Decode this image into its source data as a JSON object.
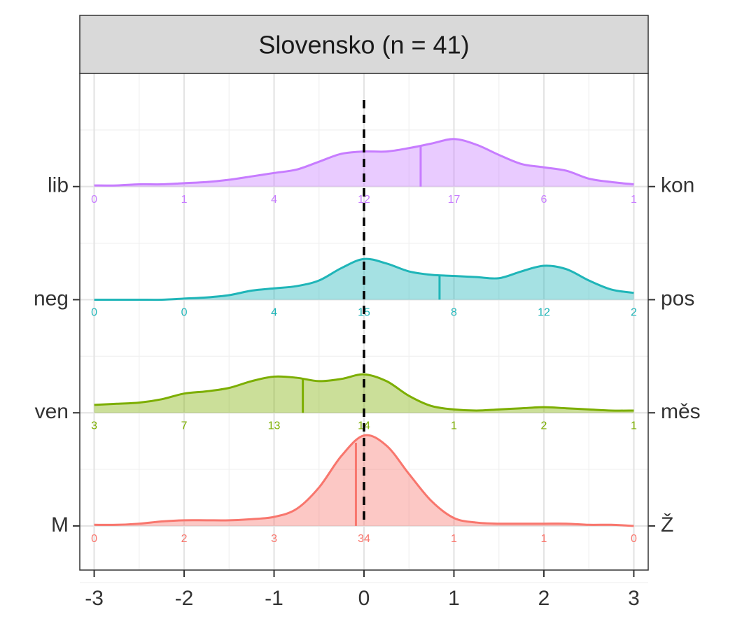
{
  "chart_data": {
    "type": "ridgeline",
    "title": "Slovensko (n = 41)",
    "x": [
      -3,
      -2.75,
      -2.5,
      -2.25,
      -2,
      -1.75,
      -1.5,
      -1.25,
      -1,
      -0.75,
      -0.5,
      -0.25,
      0,
      0.25,
      0.5,
      0.75,
      1,
      1.25,
      1.5,
      1.75,
      2,
      2.25,
      2.5,
      2.75,
      3
    ],
    "xlim": [
      -3.16,
      3.16
    ],
    "xticks": [
      -3,
      -2,
      -1,
      0,
      1,
      2,
      3
    ],
    "ylim": [
      0.61,
      5.0
    ],
    "yticks": [
      {
        "value": 1,
        "label": "M"
      },
      {
        "value": 2,
        "label": "ven"
      },
      {
        "value": 3,
        "label": "neg"
      },
      {
        "value": 4,
        "label": "lib"
      }
    ],
    "y2ticks": [
      {
        "value": 1,
        "label": "Ž"
      },
      {
        "value": 2,
        "label": "měs"
      },
      {
        "value": 3,
        "label": "pos"
      },
      {
        "value": 4,
        "label": "kon"
      }
    ],
    "vline": 0,
    "grid": true,
    "series": [
      {
        "color": "#f8766d",
        "mean": -0.09,
        "counts": [
          0,
          2,
          3,
          34,
          1,
          1,
          0
        ],
        "values": [
          0.01,
          0.01,
          0.02,
          0.04,
          0.05,
          0.05,
          0.05,
          0.06,
          0.08,
          0.15,
          0.34,
          0.62,
          0.8,
          0.71,
          0.46,
          0.22,
          0.07,
          0.03,
          0.02,
          0.02,
          0.02,
          0.02,
          0.01,
          0.01,
          0
        ]
      },
      {
        "color": "#7cae00",
        "mean": -0.68,
        "counts": [
          3,
          7,
          13,
          14,
          1,
          2,
          1
        ],
        "values": [
          0.07,
          0.08,
          0.09,
          0.12,
          0.17,
          0.19,
          0.22,
          0.28,
          0.32,
          0.31,
          0.28,
          0.3,
          0.34,
          0.28,
          0.15,
          0.06,
          0.03,
          0.02,
          0.03,
          0.04,
          0.05,
          0.04,
          0.03,
          0.02,
          0.02
        ]
      },
      {
        "color": "#1fb5b8",
        "mean": 0.84,
        "counts": [
          0,
          0,
          4,
          15,
          8,
          12,
          2
        ],
        "values": [
          0,
          0,
          0,
          0,
          0.01,
          0.02,
          0.04,
          0.08,
          0.1,
          0.12,
          0.17,
          0.28,
          0.36,
          0.32,
          0.25,
          0.22,
          0.21,
          0.2,
          0.19,
          0.25,
          0.3,
          0.27,
          0.17,
          0.09,
          0.06
        ]
      },
      {
        "color": "#c77cff",
        "mean": 0.63,
        "counts": [
          0,
          1,
          4,
          12,
          17,
          6,
          1
        ],
        "values": [
          0.01,
          0.01,
          0.02,
          0.02,
          0.03,
          0.04,
          0.06,
          0.09,
          0.12,
          0.15,
          0.22,
          0.29,
          0.31,
          0.31,
          0.34,
          0.38,
          0.42,
          0.37,
          0.28,
          0.2,
          0.17,
          0.14,
          0.07,
          0.04,
          0.02
        ]
      }
    ]
  }
}
